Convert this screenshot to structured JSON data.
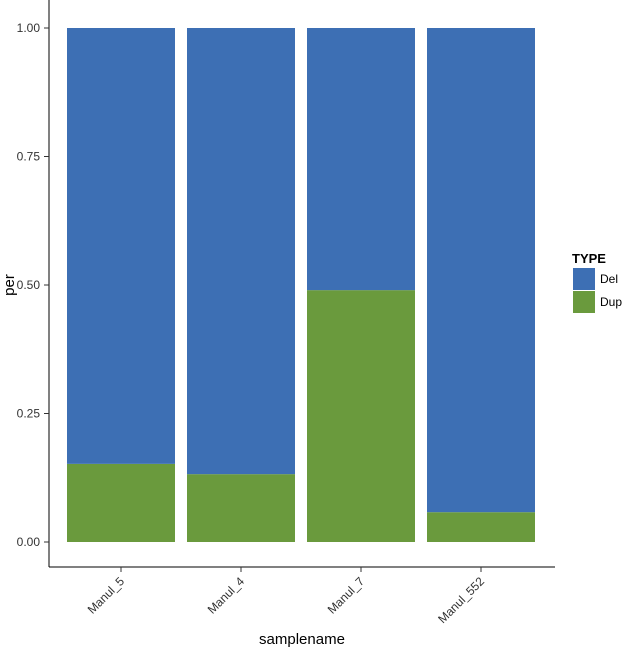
{
  "chart_data": {
    "type": "bar",
    "stacked": true,
    "categories": [
      "Manul_5",
      "Manul_4",
      "Manul_7",
      "Manul_552"
    ],
    "series": [
      {
        "name": "Dup",
        "values": [
          0.152,
          0.132,
          0.49,
          0.058
        ],
        "color": "#6a9a3d"
      },
      {
        "name": "Del",
        "values": [
          0.848,
          0.868,
          0.51,
          0.942
        ],
        "color": "#3d6fb4"
      }
    ],
    "xlabel": "samplename",
    "ylabel": "per",
    "ylim": [
      0,
      1
    ],
    "yticks": [
      "0.00",
      "0.25",
      "0.50",
      "0.75",
      "1.00"
    ],
    "ytick_values": [
      0,
      0.25,
      0.5,
      0.75,
      1
    ],
    "grid": false,
    "legend": {
      "title": "TYPE",
      "placement": "right",
      "items": [
        {
          "label": "Del",
          "color": "#3d6fb4"
        },
        {
          "label": "Dup",
          "color": "#6a9a3d"
        }
      ]
    }
  }
}
